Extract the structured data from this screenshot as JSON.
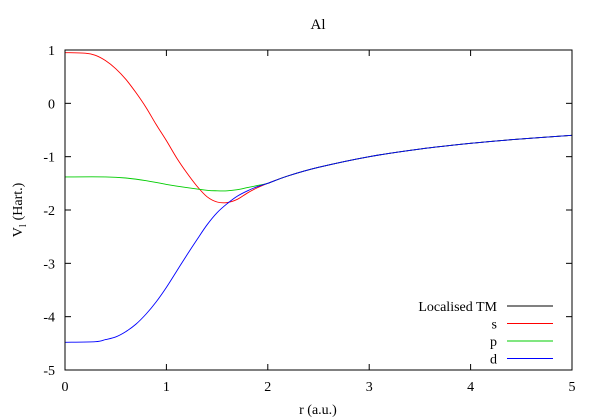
{
  "chart_data": {
    "type": "line",
    "title": "Al",
    "xlabel": "r (a.u.)",
    "ylabel_main": "V",
    "ylabel_sub": "l",
    "ylabel_unit": "(Hart.)",
    "xlim": [
      0,
      5
    ],
    "ylim": [
      -5,
      1
    ],
    "xticks": [
      "0",
      "1",
      "2",
      "3",
      "4",
      "5"
    ],
    "yticks": [
      "1",
      "0",
      "-1",
      "-2",
      "-3",
      "-4",
      "-5"
    ],
    "legend_position": "bottom-right",
    "series": [
      {
        "name": "Localised TM",
        "color": "#000000",
        "x": [
          2.0,
          2.2,
          2.5,
          3.0,
          3.5,
          4.0,
          4.5,
          5.0
        ],
        "y": [
          -1.5,
          -1.36,
          -1.2,
          -1.0,
          -0.857,
          -0.75,
          -0.667,
          -0.6
        ]
      },
      {
        "name": "s",
        "color": "#ff0000",
        "x": [
          0.0,
          0.2,
          0.3,
          0.4,
          0.5,
          0.6,
          0.7,
          0.8,
          0.9,
          1.0,
          1.1,
          1.2,
          1.3,
          1.4,
          1.5,
          1.6,
          1.7,
          1.8,
          1.9,
          2.0,
          2.2,
          2.5,
          3.0,
          3.5,
          4.0,
          4.5,
          5.0
        ],
        "y": [
          0.95,
          0.94,
          0.9,
          0.8,
          0.65,
          0.45,
          0.2,
          -0.08,
          -0.4,
          -0.7,
          -1.02,
          -1.3,
          -1.55,
          -1.75,
          -1.85,
          -1.86,
          -1.8,
          -1.68,
          -1.58,
          -1.5,
          -1.36,
          -1.2,
          -1.0,
          -0.857,
          -0.75,
          -0.667,
          -0.6
        ]
      },
      {
        "name": "p",
        "color": "#00cc00",
        "x": [
          0.0,
          0.4,
          0.6,
          0.8,
          1.0,
          1.2,
          1.4,
          1.5,
          1.6,
          1.7,
          1.8,
          1.9,
          2.0,
          2.2,
          2.5,
          3.0,
          3.5,
          4.0,
          4.5,
          5.0
        ],
        "y": [
          -1.38,
          -1.38,
          -1.4,
          -1.45,
          -1.52,
          -1.58,
          -1.63,
          -1.64,
          -1.64,
          -1.62,
          -1.58,
          -1.54,
          -1.5,
          -1.36,
          -1.2,
          -1.0,
          -0.857,
          -0.75,
          -0.667,
          -0.6
        ]
      },
      {
        "name": "d",
        "color": "#0000ff",
        "x": [
          0.0,
          0.3,
          0.4,
          0.5,
          0.6,
          0.7,
          0.8,
          0.9,
          1.0,
          1.1,
          1.2,
          1.3,
          1.4,
          1.5,
          1.6,
          1.7,
          1.8,
          1.9,
          2.0,
          2.2,
          2.5,
          3.0,
          3.5,
          4.0,
          4.5,
          5.0
        ],
        "y": [
          -4.48,
          -4.47,
          -4.43,
          -4.38,
          -4.28,
          -4.14,
          -3.95,
          -3.72,
          -3.45,
          -3.15,
          -2.85,
          -2.56,
          -2.28,
          -2.05,
          -1.88,
          -1.74,
          -1.64,
          -1.56,
          -1.5,
          -1.36,
          -1.2,
          -1.0,
          -0.857,
          -0.75,
          -0.667,
          -0.6
        ]
      }
    ]
  }
}
